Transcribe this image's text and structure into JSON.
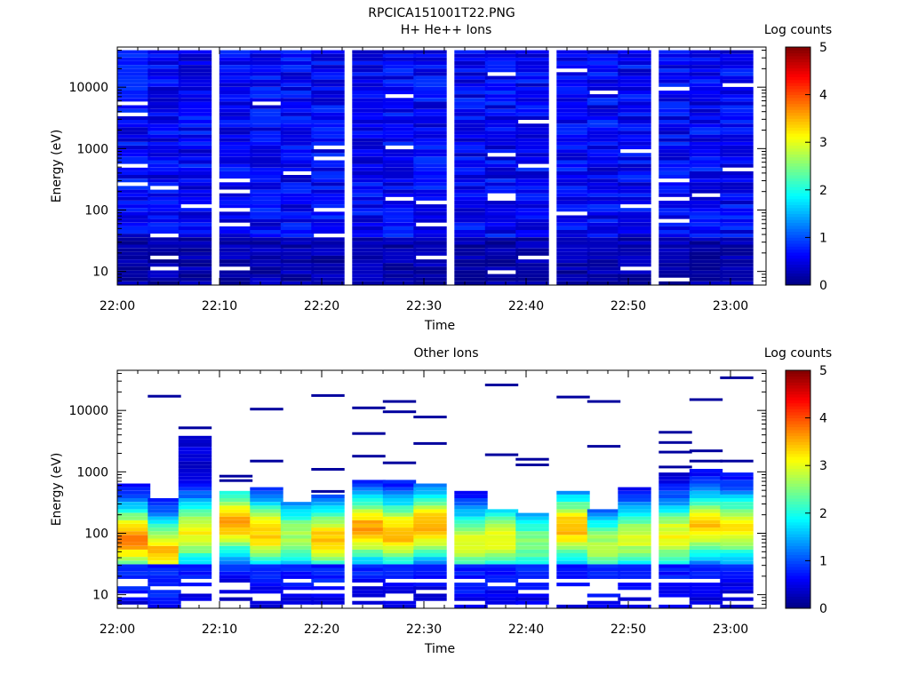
{
  "figure": {
    "title": "RPCICA151001T22.PNG"
  },
  "chart_data": [
    {
      "type": "heatmap",
      "title": "H+ He++ Ions",
      "xlabel": "Time",
      "ylabel": "Energy (eV)",
      "x_ticks": [
        "22:00",
        "22:10",
        "22:20",
        "22:30",
        "22:40",
        "22:50",
        "23:00"
      ],
      "x_range": [
        "22:00",
        "23:03"
      ],
      "y_scale": "log",
      "y_ticks": [
        "10",
        "100",
        "1000",
        "10000"
      ],
      "y_range": [
        6,
        45000
      ],
      "colorbar": {
        "label": "Log counts",
        "ticks": [
          "0",
          "1",
          "2",
          "3",
          "4",
          "5"
        ],
        "range": [
          0,
          5
        ]
      },
      "time_bins": [
        "22:01",
        "22:04",
        "22:07",
        "22:11",
        "22:14",
        "22:17",
        "22:20",
        "22:24",
        "22:27",
        "22:30",
        "22:34",
        "22:37",
        "22:40",
        "22:44",
        "22:47",
        "22:50",
        "22:54",
        "22:57",
        "23:00"
      ],
      "energy_range_eV": [
        6,
        40000
      ],
      "typical_log_counts": [
        0.3,
        0.9
      ]
    },
    {
      "type": "heatmap",
      "title": "Other Ions",
      "xlabel": "Time",
      "ylabel": "Energy (eV)",
      "x_ticks": [
        "22:00",
        "22:10",
        "22:20",
        "22:30",
        "22:40",
        "22:50",
        "23:00"
      ],
      "x_range": [
        "22:00",
        "23:03"
      ],
      "y_scale": "log",
      "y_ticks": [
        "10",
        "100",
        "1000",
        "10000"
      ],
      "y_range": [
        6,
        45000
      ],
      "colorbar": {
        "label": "Log counts",
        "ticks": [
          "0",
          "1",
          "2",
          "3",
          "4",
          "5"
        ],
        "range": [
          0,
          5
        ]
      },
      "time_bins": [
        "22:01",
        "22:04",
        "22:07",
        "22:11",
        "22:14",
        "22:17",
        "22:20",
        "22:24",
        "22:27",
        "22:30",
        "22:34",
        "22:37",
        "22:40",
        "22:44",
        "22:47",
        "22:50",
        "22:54",
        "22:57",
        "23:00"
      ],
      "column_top_energy_eV": [
        620,
        380,
        3900,
        520,
        560,
        310,
        400,
        750,
        700,
        620,
        480,
        260,
        220,
        480,
        260,
        600,
        1000,
        1100,
        950
      ],
      "column_peak_energy_eV": [
        80,
        50,
        100,
        150,
        100,
        90,
        80,
        120,
        100,
        130,
        70,
        80,
        70,
        120,
        60,
        80,
        90,
        130,
        120
      ],
      "column_peak_log_counts": [
        3.3,
        3.0,
        2.7,
        3.2,
        3.0,
        2.3,
        3.0,
        3.2,
        3.1,
        3.2,
        2.6,
        2.7,
        2.1,
        3.1,
        2.4,
        2.5,
        2.7,
        3.0,
        2.8
      ],
      "sparse_high_energy_eV": [
        [],
        [
          17000
        ],
        [
          5200
        ],
        [
          850,
          720
        ],
        [
          10500,
          1500
        ],
        [],
        [
          17500,
          1100,
          480
        ],
        [
          11000,
          4200,
          1800
        ],
        [
          14000,
          9500,
          1400
        ],
        [
          7800,
          2900
        ],
        [],
        [
          26000,
          1900
        ],
        [
          1600,
          1300
        ],
        [
          16500
        ],
        [
          14000,
          2600
        ],
        [],
        [
          4400,
          3000,
          2100,
          1200
        ],
        [
          15000,
          2200,
          1500
        ],
        [
          34000,
          1500
        ]
      ]
    }
  ]
}
